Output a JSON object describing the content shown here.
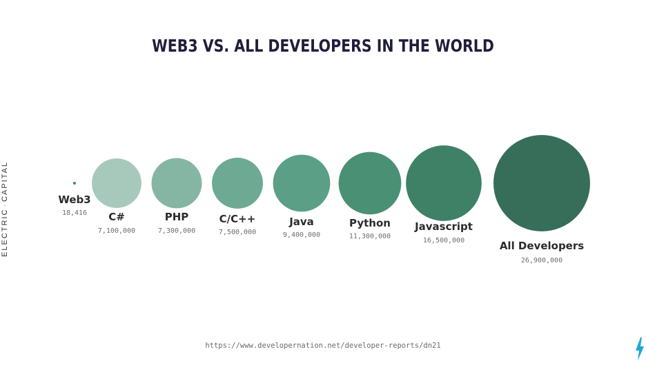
{
  "brand": {
    "left": "ELECTRIC",
    "right": "CAPITAL"
  },
  "source": "https://www.developernation.net/developer-reports/dn21",
  "icon": "lightning-bolt-icon",
  "colors": {
    "brand": "#2a9d8f",
    "bolt": "#1fa8d8",
    "title": "#1f1e3a"
  },
  "chart_data": {
    "type": "bubble",
    "title": "WEB3 VS. ALL DEVELOPERS IN THE WORLD",
    "categories": [
      "Web3",
      "C#",
      "PHP",
      "C/C++",
      "Java",
      "Python",
      "Javascript",
      "All Developers"
    ],
    "values": [
      18416,
      7100000,
      7300000,
      7500000,
      9400000,
      11300000,
      16500000,
      26900000
    ],
    "value_labels": [
      "18,416",
      "7,100,000",
      "7,300,000",
      "7,500,000",
      "9,400,000",
      "11,300,000",
      "16,500,000",
      "26,900,000"
    ],
    "colors": [
      "#2e8b73",
      "#a6c9bc",
      "#85b5a3",
      "#6ea994",
      "#5a9f86",
      "#4a9074",
      "#3f8166",
      "#376e59"
    ]
  }
}
